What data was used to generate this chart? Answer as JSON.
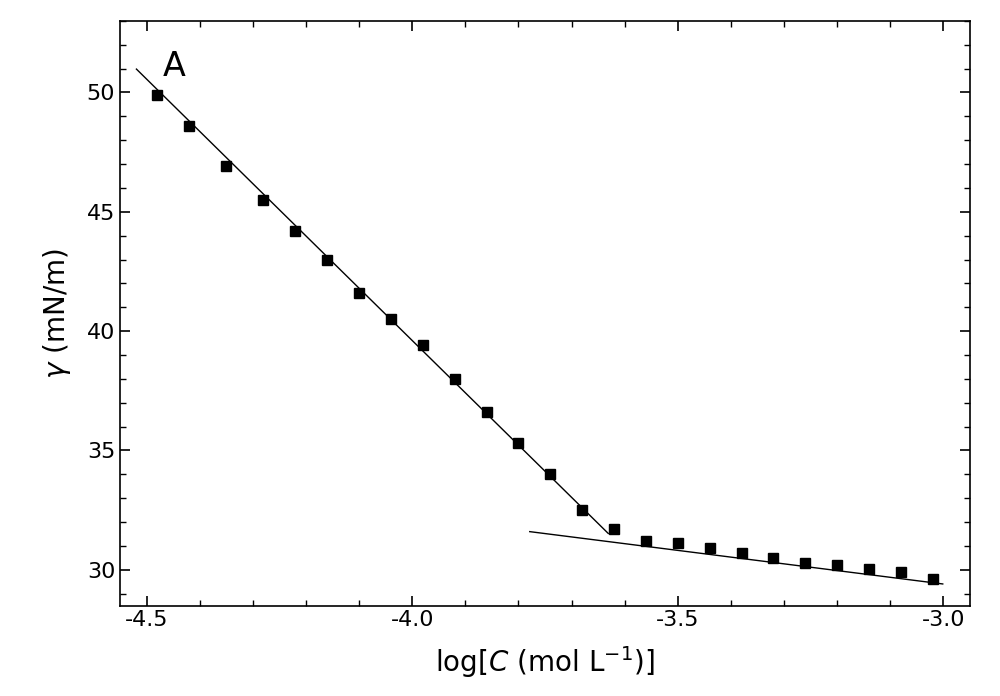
{
  "title": "A",
  "xlim": [
    -4.55,
    -2.95
  ],
  "ylim": [
    28.5,
    53
  ],
  "xticks": [
    -4.5,
    -4.0,
    -3.5,
    -3.0
  ],
  "yticks": [
    30,
    35,
    40,
    45,
    50
  ],
  "background_color": "#ffffff",
  "data_x": [
    -4.48,
    -4.42,
    -4.35,
    -4.28,
    -4.22,
    -4.16,
    -4.1,
    -4.04,
    -3.98,
    -3.92,
    -3.86,
    -3.8,
    -3.74,
    -3.68,
    -3.62,
    -3.56,
    -3.5,
    -3.44,
    -3.38,
    -3.32,
    -3.26,
    -3.2,
    -3.14,
    -3.08,
    -3.02
  ],
  "data_y": [
    49.9,
    48.6,
    46.9,
    45.5,
    44.2,
    43.0,
    41.6,
    40.5,
    39.4,
    38.0,
    36.6,
    35.3,
    34.0,
    32.5,
    31.7,
    31.2,
    31.1,
    30.9,
    30.7,
    30.5,
    30.3,
    30.2,
    30.05,
    29.9,
    29.6
  ],
  "line1_x": [
    -4.52,
    -3.63
  ],
  "line1_y": [
    51.0,
    31.5
  ],
  "line2_x": [
    -3.78,
    -3.0
  ],
  "line2_y": [
    31.6,
    29.4
  ],
  "marker_color": "#000000",
  "line_color": "#000000",
  "marker_size": 7.5,
  "tick_fontsize": 16,
  "label_fontsize": 20
}
